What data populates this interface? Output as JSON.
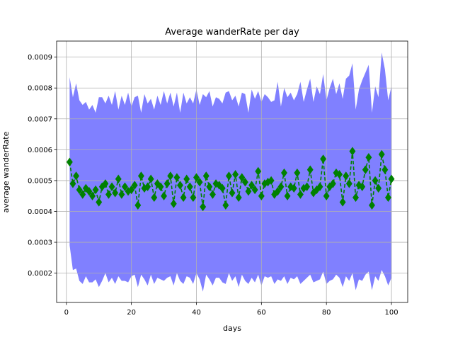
{
  "chart_data": {
    "type": "line",
    "title": "Average wanderRate per day",
    "xlabel": "days",
    "ylabel": "average wanderRate",
    "xlim": [
      -3,
      105
    ],
    "ylim": [
      0.000105,
      0.000952
    ],
    "xticks": [
      0,
      20,
      40,
      60,
      80,
      100
    ],
    "xtick_labels": [
      "0",
      "20",
      "40",
      "60",
      "80",
      "100"
    ],
    "yticks": [
      0.0002,
      0.0003,
      0.0004,
      0.0005,
      0.0006,
      0.0007,
      0.0008,
      0.0009
    ],
    "ytick_labels": [
      "0.0002",
      "0.0003",
      "0.0004",
      "0.0005",
      "0.0006",
      "0.0007",
      "0.0008",
      "0.0009"
    ],
    "grid": true,
    "colors": {
      "band": "#8080ff",
      "line": "#008000",
      "grid": "#b0b0b0",
      "axis": "#000000"
    },
    "x": [
      1,
      2,
      3,
      4,
      5,
      6,
      7,
      8,
      9,
      10,
      11,
      12,
      13,
      14,
      15,
      16,
      17,
      18,
      19,
      20,
      21,
      22,
      23,
      24,
      25,
      26,
      27,
      28,
      29,
      30,
      31,
      32,
      33,
      34,
      35,
      36,
      37,
      38,
      39,
      40,
      41,
      42,
      43,
      44,
      45,
      46,
      47,
      48,
      49,
      50,
      51,
      52,
      53,
      54,
      55,
      56,
      57,
      58,
      59,
      60,
      61,
      62,
      63,
      64,
      65,
      66,
      67,
      68,
      69,
      70,
      71,
      72,
      73,
      74,
      75,
      76,
      77,
      78,
      79,
      80,
      81,
      82,
      83,
      84,
      85,
      86,
      87,
      88,
      89,
      90,
      91,
      92,
      93,
      94,
      95,
      96,
      97,
      98,
      99,
      100
    ],
    "series": [
      {
        "role": "mean",
        "marker": "diamond",
        "linestyle": "dashed",
        "values": [
          0.00056,
          0.00049,
          0.000515,
          0.00047,
          0.000455,
          0.000475,
          0.000465,
          0.00045,
          0.00047,
          0.00043,
          0.00048,
          0.00049,
          0.000455,
          0.00048,
          0.00046,
          0.000505,
          0.000455,
          0.00048,
          0.000465,
          0.00047,
          0.000485,
          0.00042,
          0.000515,
          0.000475,
          0.00048,
          0.000505,
          0.000445,
          0.00049,
          0.00048,
          0.00045,
          0.00049,
          0.000515,
          0.000425,
          0.00051,
          0.000485,
          0.000445,
          0.000505,
          0.00048,
          0.000445,
          0.00051,
          0.000495,
          0.000415,
          0.000515,
          0.00048,
          0.000455,
          0.00049,
          0.000485,
          0.000475,
          0.00042,
          0.000515,
          0.00046,
          0.00052,
          0.000445,
          0.00051,
          0.000495,
          0.000465,
          0.000485,
          0.00047,
          0.00053,
          0.00045,
          0.00049,
          0.000495,
          0.0005,
          0.000455,
          0.000465,
          0.00048,
          0.000525,
          0.00045,
          0.00048,
          0.000475,
          0.000525,
          0.000455,
          0.000475,
          0.00048,
          0.000535,
          0.00046,
          0.00047,
          0.00048,
          0.00057,
          0.00045,
          0.00048,
          0.00049,
          0.000525,
          0.00052,
          0.00043,
          0.000515,
          0.00049,
          0.000595,
          0.000445,
          0.000485,
          0.00048,
          0.000535,
          0.000575,
          0.00042,
          0.0005,
          0.000475,
          0.000585,
          0.000535,
          0.000445,
          0.000505
        ]
      },
      {
        "role": "band-upper",
        "values": [
          0.000835,
          0.00077,
          0.000815,
          0.00076,
          0.000745,
          0.000755,
          0.00073,
          0.000745,
          0.00072,
          0.00077,
          0.00077,
          0.00075,
          0.000775,
          0.000745,
          0.00079,
          0.00073,
          0.000775,
          0.000745,
          0.000785,
          0.00074,
          0.00077,
          0.000775,
          0.00072,
          0.00078,
          0.00075,
          0.000765,
          0.00073,
          0.000775,
          0.000745,
          0.00079,
          0.00075,
          0.000785,
          0.00074,
          0.000785,
          0.00072,
          0.000785,
          0.00075,
          0.00077,
          0.00075,
          0.000795,
          0.000745,
          0.00078,
          0.00077,
          0.00079,
          0.00074,
          0.00077,
          0.000765,
          0.00075,
          0.000785,
          0.00079,
          0.00076,
          0.000775,
          0.00074,
          0.000785,
          0.00078,
          0.00072,
          0.000795,
          0.000765,
          0.00079,
          0.000755,
          0.00078,
          0.00077,
          0.000755,
          0.00076,
          0.00082,
          0.00074,
          0.0008,
          0.00077,
          0.000785,
          0.00076,
          0.00078,
          0.00082,
          0.000755,
          0.000795,
          0.00083,
          0.000755,
          0.000805,
          0.00078,
          0.000845,
          0.00076,
          0.0008,
          0.00083,
          0.00078,
          0.000815,
          0.000765,
          0.00083,
          0.00084,
          0.00088,
          0.00073,
          0.000795,
          0.000825,
          0.00085,
          0.000875,
          0.00072,
          0.000805,
          0.00077,
          0.000915,
          0.00086,
          0.00076,
          0.000805
        ]
      },
      {
        "role": "band-lower",
        "values": [
          0.00029,
          0.00021,
          0.000215,
          0.000175,
          0.000165,
          0.00019,
          0.00017,
          0.00017,
          0.00018,
          0.000155,
          0.000175,
          0.0002,
          0.00017,
          0.000185,
          0.000165,
          0.00019,
          0.000175,
          0.000175,
          0.00017,
          0.00019,
          0.000195,
          0.000155,
          0.000195,
          0.00018,
          0.00016,
          0.000195,
          0.000165,
          0.000185,
          0.00018,
          0.000175,
          0.000185,
          0.00019,
          0.00016,
          0.0002,
          0.000175,
          0.000165,
          0.00019,
          0.000185,
          0.000165,
          0.0002,
          0.00018,
          0.00014,
          0.000195,
          0.00018,
          0.00016,
          0.000185,
          0.000185,
          0.00017,
          0.000165,
          0.0002,
          0.000175,
          0.00019,
          0.000155,
          0.000195,
          0.000175,
          0.000165,
          0.000185,
          0.00017,
          0.000195,
          0.00016,
          0.00019,
          0.000185,
          0.00019,
          0.000165,
          0.00018,
          0.000175,
          0.00019,
          0.000165,
          0.000185,
          0.00018,
          0.00019,
          0.000165,
          0.000175,
          0.000185,
          0.000195,
          0.00017,
          0.000175,
          0.00018,
          0.000205,
          0.000165,
          0.000175,
          0.00018,
          0.000195,
          0.000185,
          0.000155,
          0.00019,
          0.000175,
          0.0002,
          0.000145,
          0.00018,
          0.000175,
          0.000195,
          0.000205,
          0.000145,
          0.00019,
          0.000175,
          0.00021,
          0.00019,
          0.00016,
          0.000185
        ]
      }
    ]
  }
}
